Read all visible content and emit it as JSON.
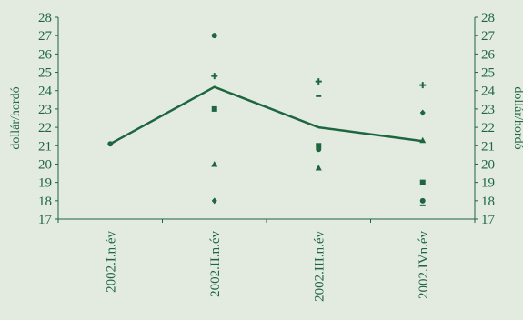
{
  "chart_data": {
    "type": "line",
    "ylabel_left": "dollár/hordó",
    "ylabel_right": "dollár/hordó",
    "ylim": [
      17,
      28
    ],
    "yticks": [
      17,
      18,
      19,
      20,
      21,
      22,
      23,
      24,
      25,
      26,
      27,
      28
    ],
    "categories": [
      "2002.I.n.év",
      "2002.II.n.év",
      "2002.III.n.év",
      "2002.IVn.év"
    ],
    "grid": false,
    "legend": "none",
    "line_series": {
      "values": [
        21.1,
        24.2,
        22.0,
        21.25
      ],
      "color": "#1e6640"
    },
    "forecast_points": [
      {
        "category": "2002.I.n.év",
        "marker": "circle",
        "value": 21.1
      },
      {
        "category": "2002.II.n.év",
        "marker": "circle",
        "value": 27.0
      },
      {
        "category": "2002.II.n.év",
        "marker": "cross",
        "value": 24.8
      },
      {
        "category": "2002.II.n.év",
        "marker": "square",
        "value": 23.0
      },
      {
        "category": "2002.II.n.év",
        "marker": "triangle",
        "value": 20.0
      },
      {
        "category": "2002.II.n.év",
        "marker": "diamond",
        "value": 18.0
      },
      {
        "category": "2002.III.n.év",
        "marker": "cross",
        "value": 24.5
      },
      {
        "category": "2002.III.n.év",
        "marker": "dash",
        "value": 23.7
      },
      {
        "category": "2002.III.n.év",
        "marker": "square",
        "value": 21.0
      },
      {
        "category": "2002.III.n.év",
        "marker": "circle",
        "value": 20.8
      },
      {
        "category": "2002.III.n.év",
        "marker": "triangle",
        "value": 19.8
      },
      {
        "category": "2002.IVn.év",
        "marker": "cross",
        "value": 24.3
      },
      {
        "category": "2002.IVn.év",
        "marker": "diamond",
        "value": 22.8
      },
      {
        "category": "2002.IVn.év",
        "marker": "triangle",
        "value": 21.3
      },
      {
        "category": "2002.IVn.év",
        "marker": "square",
        "value": 19.0
      },
      {
        "category": "2002.IVn.év",
        "marker": "circle",
        "value": 18.0
      },
      {
        "category": "2002.IVn.év",
        "marker": "dash",
        "value": 17.75
      }
    ],
    "colors": {
      "background": "#e3ebe1",
      "accent": "#1e6640"
    }
  }
}
